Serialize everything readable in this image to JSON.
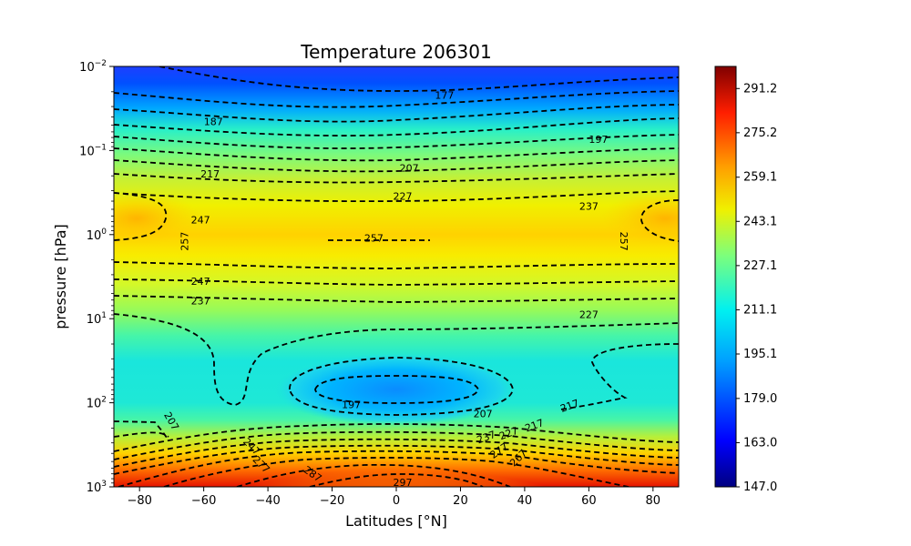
{
  "chart_data": {
    "type": "heatmap",
    "subtype": "filled-contour",
    "title": "Temperature 206301",
    "xlabel": "Latitudes [°N]",
    "ylabel": "pressure [hPa]",
    "xlim": [
      -88,
      88
    ],
    "ylim": [
      1000,
      0.01
    ],
    "y_scale": "log",
    "x_ticks": [
      -80,
      -60,
      -40,
      -20,
      0,
      20,
      40,
      60,
      80
    ],
    "x_tick_labels": [
      "−80",
      "−60",
      "−40",
      "−20",
      "0",
      "20",
      "40",
      "60",
      "80"
    ],
    "y_ticks": [
      0.01,
      0.1,
      1,
      10,
      100,
      1000
    ],
    "y_tick_labels": [
      {
        "base": "10",
        "exp": "−2"
      },
      {
        "base": "10",
        "exp": "−1"
      },
      {
        "base": "10",
        "exp": "0"
      },
      {
        "base": "10",
        "exp": "1"
      },
      {
        "base": "10",
        "exp": "2"
      },
      {
        "base": "10",
        "exp": "3"
      }
    ],
    "colormap": "jet",
    "colorbar": {
      "range": [
        147.0,
        299.2
      ],
      "tick_labels": [
        "147.0",
        "163.0",
        "179.0",
        "195.1",
        "211.1",
        "227.1",
        "243.1",
        "259.1",
        "275.2",
        "291.2"
      ],
      "tick_values": [
        147.0,
        163.0,
        179.0,
        195.1,
        211.1,
        227.1,
        243.1,
        259.1,
        275.2,
        291.2
      ]
    },
    "contour_levels": [
      177,
      187,
      197,
      207,
      217,
      227,
      237,
      247,
      257,
      267,
      277,
      287,
      297
    ],
    "contour_labels": [
      {
        "text": "177",
        "lat": 15,
        "p": 0.022,
        "rot": 0
      },
      {
        "text": "187",
        "lat": -57,
        "p": 0.045,
        "rot": 0
      },
      {
        "text": "197",
        "lat": 63,
        "p": 0.073,
        "rot": 0
      },
      {
        "text": "207",
        "lat": 4,
        "p": 0.16,
        "rot": 0
      },
      {
        "text": "217",
        "lat": -58,
        "p": 0.19,
        "rot": 0
      },
      {
        "text": "227",
        "lat": 2,
        "p": 0.35,
        "rot": 0
      },
      {
        "text": "237",
        "lat": 60,
        "p": 0.46,
        "rot": 0
      },
      {
        "text": "247",
        "lat": -61,
        "p": 0.67,
        "rot": 0
      },
      {
        "text": "257",
        "lat": -66,
        "p": 1.2,
        "rot": -90
      },
      {
        "text": "257",
        "lat": 71,
        "p": 1.2,
        "rot": 90
      },
      {
        "text": "257",
        "lat": -7,
        "p": 1.1,
        "rot": 0
      },
      {
        "text": "247",
        "lat": -61,
        "p": 3.6,
        "rot": 0
      },
      {
        "text": "237",
        "lat": -61,
        "p": 6.1,
        "rot": 0
      },
      {
        "text": "227",
        "lat": 60,
        "p": 8.9,
        "rot": 0
      },
      {
        "text": "197",
        "lat": -14,
        "p": 105,
        "rot": 0
      },
      {
        "text": "207",
        "lat": 27,
        "p": 135,
        "rot": 0
      },
      {
        "text": "217",
        "lat": 54,
        "p": 108,
        "rot": -20
      },
      {
        "text": "217",
        "lat": 43,
        "p": 185,
        "rot": -20
      },
      {
        "text": "207",
        "lat": -70,
        "p": 165,
        "rot": 60
      },
      {
        "text": "227",
        "lat": 35,
        "p": 230,
        "rot": -20
      },
      {
        "text": "237",
        "lat": 28,
        "p": 255,
        "rot": -20
      },
      {
        "text": "247",
        "lat": -45,
        "p": 330,
        "rot": 45
      },
      {
        "text": "277",
        "lat": 32,
        "p": 370,
        "rot": -35
      },
      {
        "text": "267",
        "lat": 38,
        "p": 450,
        "rot": -45
      },
      {
        "text": "277",
        "lat": -42,
        "p": 540,
        "rot": 45
      },
      {
        "text": "287",
        "lat": -26,
        "p": 700,
        "rot": 35
      },
      {
        "text": "297",
        "lat": 2,
        "p": 880,
        "rot": 0
      }
    ]
  }
}
